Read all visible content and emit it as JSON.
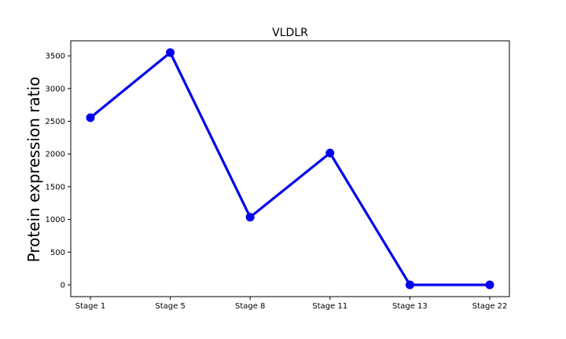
{
  "chart_data": {
    "type": "line",
    "title": "VLDLR",
    "xlabel": "",
    "ylabel": "Protein expression ratio",
    "categories": [
      "Stage 1",
      "Stage 5",
      "Stage 8",
      "Stage 11",
      "Stage 13",
      "Stage 22"
    ],
    "series": [
      {
        "values": [
          2555,
          3550,
          1035,
          2015,
          0,
          0
        ],
        "color": "#0000ee"
      }
    ],
    "ylim": [
      -180,
      3730
    ],
    "yticks": [
      0,
      500,
      1000,
      1500,
      2000,
      2500,
      3000,
      3500
    ],
    "grid": false,
    "legend": "none"
  }
}
